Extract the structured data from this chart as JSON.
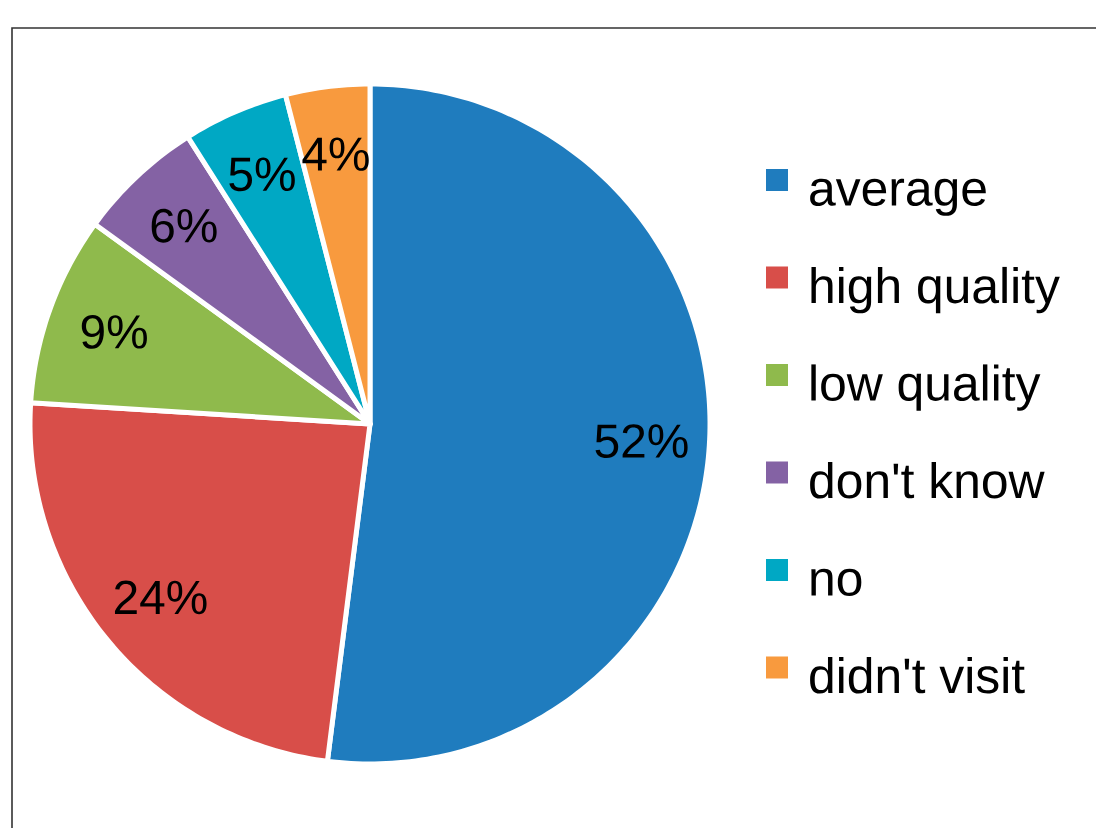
{
  "chart_data": {
    "type": "pie",
    "categories": [
      "average",
      "high quality",
      "low quality",
      "don't know",
      "no",
      "didn't visit"
    ],
    "values": [
      52,
      24,
      9,
      6,
      5,
      4
    ],
    "colors": [
      "#1f7cbe",
      "#d84e49",
      "#8fba4c",
      "#8462a4",
      "#00a8c4",
      "#f89a3e"
    ],
    "value_labels": [
      "52%",
      "24%",
      "9%",
      "6%",
      "5%",
      "4%"
    ],
    "legend": "right"
  }
}
